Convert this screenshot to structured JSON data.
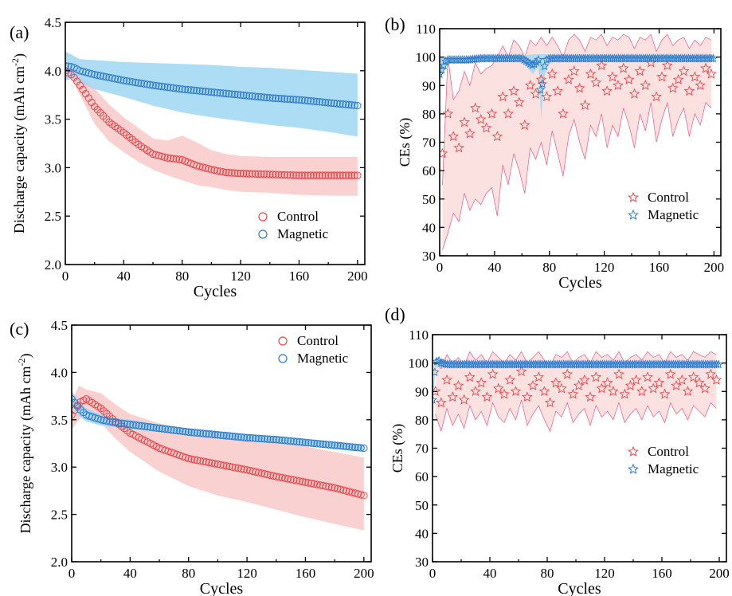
{
  "series_colors": {
    "control": "#e8474a",
    "magnetic": "#2f79c9",
    "control_band": "#f9c9c9",
    "magnetic_band": "#9fd7f3",
    "control_spiky": "#e8588a"
  },
  "chart_data": [
    {
      "panel": "(a)",
      "type": "scatter",
      "marker": "circle",
      "xlabel": "Cycles",
      "ylabel": "Discharge capacity (mAh cm",
      "ylabel_sup": "-2",
      "ylabel_close": ")",
      "xlim": [
        0,
        205
      ],
      "ylim": [
        2.0,
        4.5
      ],
      "xticks": [
        "0",
        "40",
        "80",
        "120",
        "160",
        "200"
      ],
      "yticks": [
        "2.0",
        "2.5",
        "3.0",
        "3.5",
        "4.0",
        "4.5"
      ],
      "legend_position": "lower-right",
      "grid": false,
      "series": [
        {
          "name": "Control",
          "color_key": "control",
          "x": [
            0,
            5,
            10,
            20,
            30,
            40,
            50,
            60,
            70,
            80,
            90,
            100,
            110,
            120,
            140,
            160,
            180,
            200
          ],
          "values": [
            4.0,
            3.95,
            3.85,
            3.63,
            3.47,
            3.36,
            3.24,
            3.14,
            3.1,
            3.08,
            3.02,
            2.98,
            2.95,
            2.94,
            2.93,
            2.92,
            2.92,
            2.92
          ],
          "band_upper": [
            4.02,
            4.0,
            3.95,
            3.82,
            3.65,
            3.52,
            3.41,
            3.3,
            3.28,
            3.33,
            3.26,
            3.18,
            3.14,
            3.12,
            3.11,
            3.11,
            3.11,
            3.11
          ],
          "band_lower": [
            3.98,
            3.9,
            3.75,
            3.45,
            3.27,
            3.16,
            3.06,
            2.98,
            2.92,
            2.87,
            2.82,
            2.8,
            2.77,
            2.75,
            2.74,
            2.72,
            2.71,
            2.71
          ]
        },
        {
          "name": "Magnetic",
          "color_key": "magnetic",
          "x": [
            0,
            5,
            10,
            20,
            40,
            60,
            80,
            100,
            120,
            140,
            160,
            180,
            200
          ],
          "values": [
            4.05,
            4.04,
            4.0,
            3.96,
            3.9,
            3.85,
            3.81,
            3.78,
            3.75,
            3.72,
            3.7,
            3.67,
            3.64
          ],
          "band_upper": [
            4.2,
            4.16,
            4.12,
            4.11,
            4.09,
            4.08,
            4.07,
            4.06,
            4.04,
            4.03,
            4.01,
            3.99,
            3.97
          ],
          "band_lower": [
            3.9,
            3.92,
            3.88,
            3.81,
            3.73,
            3.64,
            3.57,
            3.52,
            3.48,
            3.44,
            3.41,
            3.37,
            3.32
          ]
        }
      ]
    },
    {
      "panel": "(b)",
      "type": "scatter",
      "marker": "star",
      "xlabel": "Cycles",
      "ylabel": "CEs (%)",
      "xlim": [
        0,
        205
      ],
      "ylim": [
        30,
        110
      ],
      "xticks": [
        "0",
        "40",
        "80",
        "120",
        "160",
        "200"
      ],
      "yticks": [
        "30",
        "40",
        "50",
        "60",
        "70",
        "80",
        "90",
        "100",
        "110"
      ],
      "legend_position": "lower-right",
      "grid": false,
      "series": [
        {
          "name": "Control",
          "color_key": "control",
          "x": [
            2,
            6,
            10,
            14,
            18,
            22,
            26,
            30,
            34,
            38,
            42,
            46,
            50,
            54,
            58,
            62,
            66,
            70,
            74,
            78,
            82,
            86,
            90,
            94,
            98,
            102,
            106,
            110,
            114,
            118,
            122,
            126,
            130,
            134,
            138,
            142,
            146,
            150,
            154,
            158,
            162,
            166,
            170,
            174,
            178,
            182,
            186,
            190,
            194,
            198
          ],
          "values": [
            66,
            80,
            72,
            68,
            77,
            73,
            82,
            78,
            75,
            80,
            72,
            86,
            80,
            88,
            84,
            76,
            90,
            87,
            92,
            86,
            94,
            88,
            80,
            92,
            95,
            89,
            83,
            94,
            91,
            97,
            88,
            93,
            90,
            96,
            92,
            87,
            95,
            90,
            98,
            86,
            93,
            97,
            89,
            92,
            95,
            88,
            93,
            90,
            96,
            94
          ],
          "band_upper": [
            55,
            100,
            85,
            88,
            95,
            90,
            98,
            94,
            96,
            97,
            100,
            104,
            100,
            106,
            104,
            100,
            106,
            104,
            107,
            104,
            107,
            104,
            100,
            106,
            108,
            106,
            102,
            107,
            106,
            108,
            104,
            107,
            106,
            108,
            107,
            103,
            107,
            106,
            108,
            102,
            106,
            108,
            104,
            106,
            107,
            103,
            106,
            104,
            107,
            106
          ],
          "band_lower": [
            32,
            38,
            45,
            42,
            52,
            46,
            50,
            48,
            52,
            54,
            44,
            62,
            55,
            66,
            60,
            52,
            68,
            64,
            70,
            62,
            74,
            66,
            58,
            72,
            78,
            70,
            64,
            76,
            72,
            80,
            68,
            76,
            72,
            82,
            76,
            68,
            80,
            74,
            84,
            70,
            78,
            84,
            72,
            78,
            82,
            72,
            80,
            76,
            84,
            82
          ]
        },
        {
          "name": "Magnetic",
          "color_key": "magnetic",
          "x": [
            0,
            5,
            10,
            20,
            30,
            40,
            50,
            60,
            68,
            72,
            74,
            76,
            78,
            80,
            90,
            100,
            120,
            140,
            160,
            180,
            200
          ],
          "values": [
            94,
            99,
            99,
            99,
            99.5,
            99.5,
            99.5,
            99.5,
            97,
            99,
            85,
            96,
            99,
            99.5,
            99.5,
            99.5,
            99.5,
            99.5,
            99.5,
            99.5,
            99.5
          ],
          "band_upper": [
            100,
            100,
            100,
            100,
            100.5,
            100.5,
            100.5,
            100.5,
            101,
            101,
            101,
            101,
            101,
            100.5,
            100.5,
            100.5,
            100.5,
            100.5,
            100.5,
            100.5,
            100.5
          ],
          "band_lower": [
            92,
            98,
            98,
            98,
            98.5,
            98.5,
            98.5,
            98.5,
            94,
            97,
            78,
            92,
            97,
            98.5,
            98.5,
            98.5,
            98.5,
            98.5,
            98.5,
            98.5,
            98.5
          ]
        }
      ]
    },
    {
      "panel": "(c)",
      "type": "scatter",
      "marker": "circle",
      "xlabel": "Cycles",
      "ylabel": "Discharge capacity (mAh cm",
      "ylabel_sup": "-2",
      "ylabel_close": ")",
      "xlim": [
        0,
        205
      ],
      "ylim": [
        2.0,
        4.5
      ],
      "xticks": [
        "0",
        "40",
        "80",
        "120",
        "160",
        "200"
      ],
      "yticks": [
        "2.0",
        "2.5",
        "3.0",
        "3.5",
        "4.0",
        "4.5"
      ],
      "legend_position": "top-right",
      "grid": false,
      "series": [
        {
          "name": "Control",
          "color_key": "control",
          "x": [
            0,
            5,
            10,
            20,
            30,
            40,
            60,
            80,
            100,
            120,
            140,
            160,
            180,
            200
          ],
          "values": [
            3.55,
            3.68,
            3.72,
            3.62,
            3.48,
            3.36,
            3.2,
            3.09,
            3.03,
            2.97,
            2.9,
            2.84,
            2.78,
            2.7
          ],
          "band_upper": [
            3.7,
            3.86,
            3.82,
            3.78,
            3.66,
            3.56,
            3.46,
            3.4,
            3.36,
            3.31,
            3.27,
            3.22,
            3.16,
            3.1
          ],
          "band_lower": [
            3.4,
            3.5,
            3.58,
            3.46,
            3.3,
            3.16,
            2.95,
            2.8,
            2.7,
            2.63,
            2.55,
            2.47,
            2.4,
            2.33
          ]
        },
        {
          "name": "Magnetic",
          "color_key": "magnetic",
          "x": [
            0,
            5,
            10,
            20,
            30,
            40,
            60,
            80,
            100,
            120,
            140,
            160,
            180,
            200
          ],
          "values": [
            3.72,
            3.62,
            3.55,
            3.5,
            3.47,
            3.45,
            3.41,
            3.37,
            3.34,
            3.31,
            3.29,
            3.26,
            3.23,
            3.2
          ],
          "band_upper": [
            3.8,
            3.7,
            3.62,
            3.56,
            3.52,
            3.5,
            3.45,
            3.41,
            3.38,
            3.35,
            3.32,
            3.29,
            3.26,
            3.23
          ],
          "band_lower": [
            3.64,
            3.54,
            3.48,
            3.44,
            3.42,
            3.4,
            3.37,
            3.33,
            3.3,
            3.27,
            3.26,
            3.23,
            3.2,
            3.17
          ]
        }
      ]
    },
    {
      "panel": "(d)",
      "type": "scatter",
      "marker": "star",
      "xlabel": "Cycles",
      "ylabel": "CEs (%)",
      "xlim": [
        0,
        205
      ],
      "ylim": [
        30,
        110
      ],
      "xticks": [
        "0",
        "40",
        "80",
        "120",
        "160",
        "200"
      ],
      "yticks": [
        "30",
        "40",
        "50",
        "60",
        "70",
        "80",
        "90",
        "100",
        "110"
      ],
      "legend_position": "center-right",
      "grid": false,
      "series": [
        {
          "name": "Control",
          "color_key": "control",
          "x": [
            2,
            6,
            10,
            14,
            18,
            22,
            26,
            30,
            34,
            38,
            42,
            46,
            50,
            54,
            58,
            62,
            66,
            70,
            74,
            78,
            82,
            86,
            90,
            94,
            98,
            102,
            106,
            110,
            114,
            118,
            122,
            126,
            130,
            134,
            138,
            142,
            146,
            150,
            154,
            158,
            162,
            166,
            170,
            174,
            178,
            182,
            186,
            190,
            194,
            198
          ],
          "values": [
            90,
            86,
            94,
            88,
            92,
            87,
            95,
            90,
            93,
            88,
            96,
            91,
            89,
            94,
            90,
            97,
            88,
            92,
            95,
            90,
            86,
            93,
            91,
            96,
            89,
            92,
            94,
            88,
            95,
            91,
            93,
            90,
            96,
            89,
            92,
            94,
            90,
            95,
            91,
            93,
            89,
            96,
            92,
            94,
            90,
            95,
            93,
            91,
            96,
            94
          ],
          "band_upper": [
            100,
            98,
            103,
            100,
            102,
            99,
            104,
            101,
            103,
            100,
            104,
            102,
            100,
            103,
            101,
            104,
            100,
            102,
            104,
            101,
            99,
            103,
            102,
            104,
            100,
            102,
            103,
            100,
            104,
            102,
            103,
            101,
            104,
            100,
            102,
            103,
            101,
            104,
            102,
            103,
            100,
            104,
            102,
            103,
            101,
            104,
            103,
            102,
            104,
            103
          ],
          "band_lower": [
            82,
            76,
            84,
            78,
            82,
            77,
            85,
            80,
            83,
            78,
            86,
            81,
            79,
            84,
            80,
            87,
            78,
            82,
            85,
            80,
            76,
            83,
            81,
            86,
            79,
            82,
            84,
            78,
            85,
            81,
            83,
            80,
            86,
            79,
            82,
            84,
            80,
            85,
            81,
            83,
            79,
            86,
            82,
            84,
            80,
            85,
            83,
            81,
            86,
            84
          ]
        },
        {
          "name": "Magnetic",
          "color_key": "magnetic",
          "x": [
            0,
            2,
            4,
            6,
            10,
            20,
            40,
            60,
            80,
            100,
            120,
            140,
            160,
            180,
            200
          ],
          "values": [
            87,
            100,
            101,
            100,
            99.5,
            99.5,
            99.5,
            99.5,
            99.5,
            99.5,
            99.5,
            99.5,
            99.5,
            99.5,
            99.5
          ],
          "band_upper": [
            90,
            102,
            102,
            101,
            100.5,
            100.5,
            100.5,
            100.5,
            100.5,
            100.5,
            100.5,
            100.5,
            100.5,
            100.5,
            100.5
          ],
          "band_lower": [
            84,
            98,
            99,
            99,
            98.5,
            98.5,
            98.5,
            98.5,
            98.5,
            98.5,
            98.5,
            98.5,
            98.5,
            98.5,
            98.5
          ]
        }
      ]
    }
  ]
}
